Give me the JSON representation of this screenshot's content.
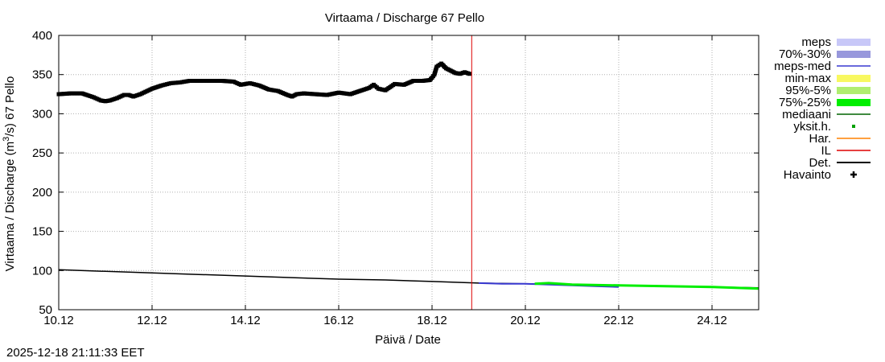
{
  "chart_data": {
    "type": "line",
    "title": "Virtaama / Discharge  67 Pello",
    "xlabel": "Päivä / Date",
    "ylabel_parts": [
      "Virtaama / Discharge (m",
      "3",
      "/s)  67 Pello"
    ],
    "ylim": [
      50,
      400
    ],
    "xlim_days": [
      10,
      25
    ],
    "yticks": [
      50,
      100,
      150,
      200,
      250,
      300,
      350,
      400
    ],
    "xticks": [
      {
        "day": 10,
        "label": "10.12"
      },
      {
        "day": 12,
        "label": "12.12"
      },
      {
        "day": 14,
        "label": "14.12"
      },
      {
        "day": 16,
        "label": "16.12"
      },
      {
        "day": 18,
        "label": "18.12"
      },
      {
        "day": 20,
        "label": "20.12"
      },
      {
        "day": 22,
        "label": "22.12"
      },
      {
        "day": 24,
        "label": "24.12"
      }
    ],
    "grid": true,
    "forecast_line_day": 18.85,
    "legend": [
      {
        "label": "meps",
        "color": "#c8c8f8",
        "style": "band"
      },
      {
        "label": "70%-30%",
        "color": "#9898dc",
        "style": "band"
      },
      {
        "label": "meps-med",
        "color": "#3838d0",
        "style": "line"
      },
      {
        "label": "min-max",
        "color": "#f8f860",
        "style": "band"
      },
      {
        "label": "95%-5%",
        "color": "#b0ee70",
        "style": "band"
      },
      {
        "label": "75%-25%",
        "color": "#00ee00",
        "style": "band"
      },
      {
        "label": "mediaani",
        "color": "#006400",
        "style": "line"
      },
      {
        "label": "yksit.h.",
        "color": "#00a000",
        "style": "point"
      },
      {
        "label": "Har.",
        "color": "#ff8000",
        "style": "line"
      },
      {
        "label": "IL",
        "color": "#dd0000",
        "style": "line"
      },
      {
        "label": "Det.",
        "color": "#000000",
        "style": "line"
      },
      {
        "label": "Havainto",
        "color": "#000000",
        "style": "plus"
      }
    ],
    "series": [
      {
        "name": "Havainto",
        "color": "#000000",
        "x": [
          10.0,
          10.25,
          10.5,
          10.6,
          10.75,
          10.9,
          11.0,
          11.1,
          11.25,
          11.4,
          11.5,
          11.6,
          11.75,
          12.0,
          12.2,
          12.4,
          12.6,
          12.8,
          13.0,
          13.25,
          13.5,
          13.75,
          13.9,
          14.1,
          14.3,
          14.5,
          14.7,
          14.9,
          15.0,
          15.1,
          15.25,
          15.5,
          15.75,
          16.0,
          16.25,
          16.5,
          16.65,
          16.75,
          16.85,
          17.0,
          17.2,
          17.4,
          17.6,
          17.8,
          17.95,
          18.0,
          18.05,
          18.1,
          18.2,
          18.3,
          18.4,
          18.5,
          18.6,
          18.7,
          18.8
        ],
        "y": [
          325,
          326,
          326,
          324,
          321,
          317,
          316,
          317,
          320,
          324,
          324,
          322,
          325,
          332,
          336,
          339,
          340,
          342,
          342,
          342,
          342,
          341,
          337,
          339,
          336,
          331,
          329,
          324,
          322,
          325,
          326,
          325,
          324,
          327,
          325,
          330,
          333,
          337,
          332,
          330,
          338,
          337,
          342,
          342,
          343,
          346,
          350,
          360,
          364,
          358,
          355,
          352,
          351,
          353,
          351
        ]
      },
      {
        "name": "Det.",
        "color": "#000000",
        "x": [
          10,
          11,
          12,
          13,
          14,
          15,
          16,
          17,
          18,
          19,
          20,
          21,
          22,
          23,
          24,
          25
        ],
        "y": [
          101,
          99,
          97,
          95,
          93,
          91,
          89,
          88,
          86,
          84,
          83,
          82,
          81,
          80,
          79,
          78
        ]
      },
      {
        "name": "meps-med",
        "color": "#3838d0",
        "x": [
          19.0,
          19.5,
          20.0,
          20.5,
          21.0,
          21.5,
          22.0
        ],
        "y": [
          84,
          83,
          83,
          82,
          81,
          80,
          79
        ]
      },
      {
        "name": "75%-25%",
        "color": "#00ee00",
        "x": [
          20.2,
          20.5,
          21.0,
          22.0,
          23.0,
          24.0,
          25.0
        ],
        "y": [
          83,
          84,
          82,
          81,
          80,
          79,
          77
        ]
      }
    ]
  },
  "footer": {
    "timestamp": "2025-12-18 21:11:33 EET"
  }
}
